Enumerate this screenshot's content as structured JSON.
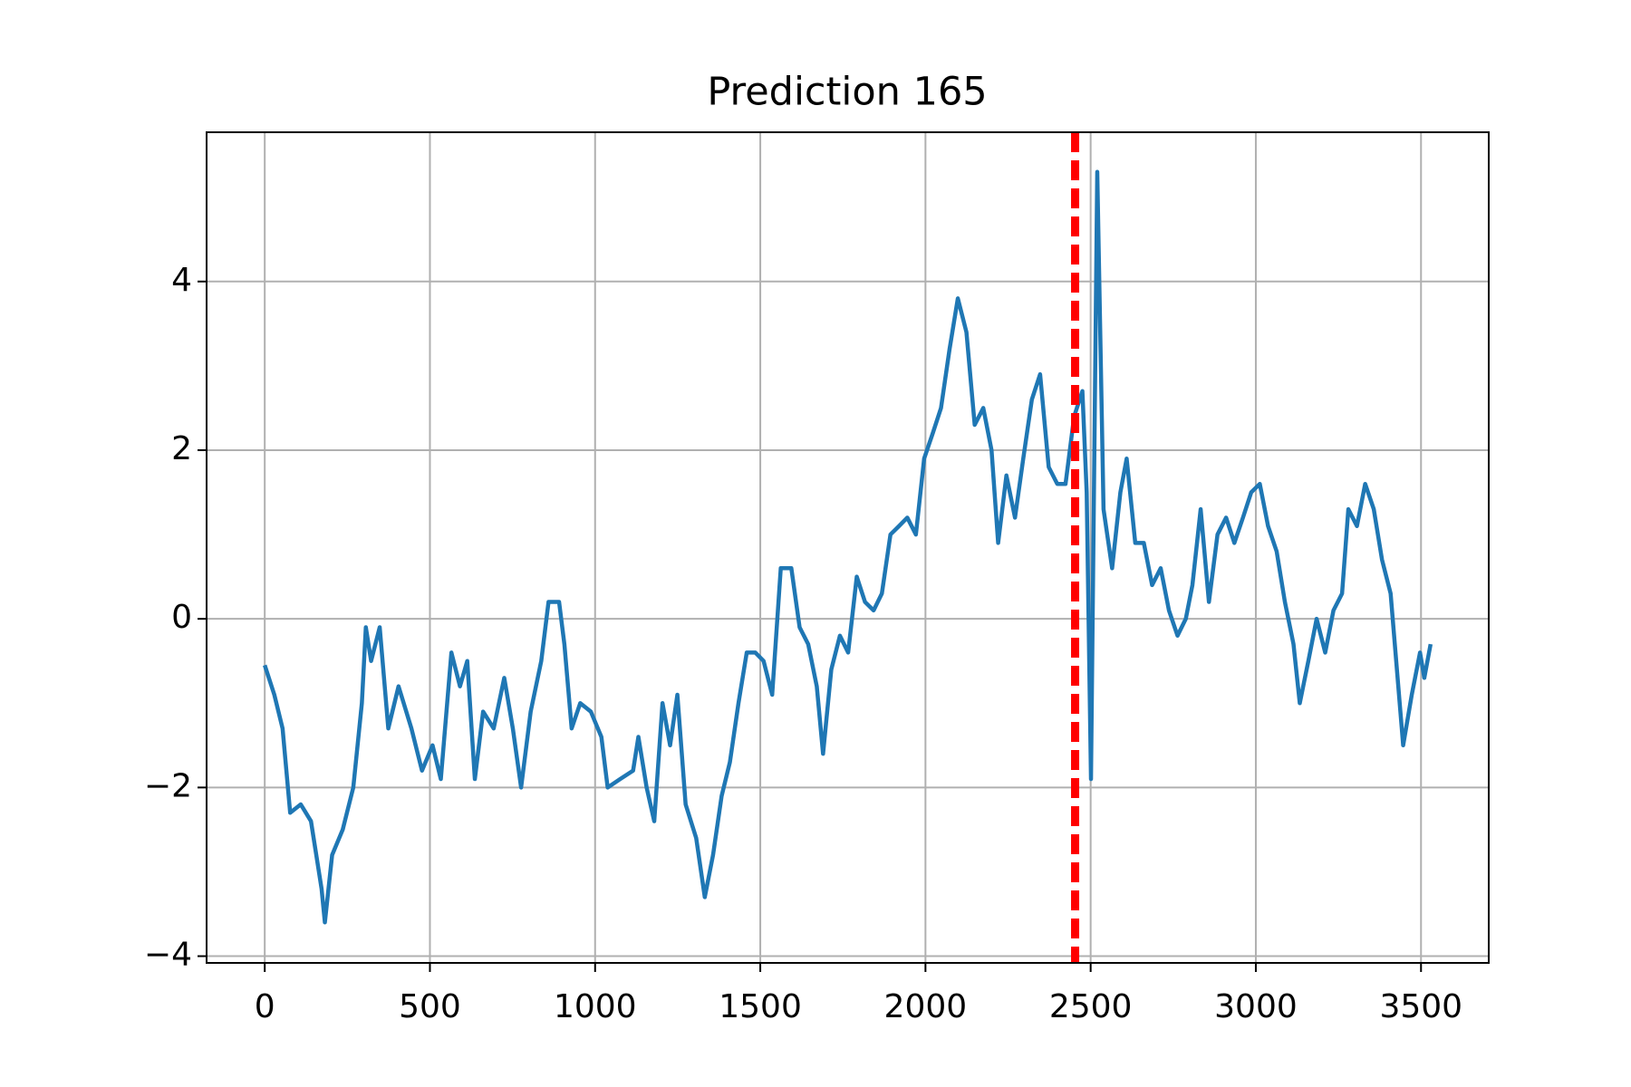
{
  "chart_data": {
    "type": "line",
    "title": "Prediction 165",
    "x": [
      0,
      29,
      54,
      77,
      109,
      140,
      172,
      182,
      204,
      236,
      268,
      294,
      306,
      322,
      348,
      374,
      405,
      444,
      476,
      508,
      533,
      565,
      591,
      613,
      636,
      661,
      693,
      725,
      751,
      776,
      805,
      837,
      859,
      891,
      907,
      929,
      955,
      987,
      1019,
      1038,
      1076,
      1115,
      1131,
      1156,
      1179,
      1204,
      1227,
      1249,
      1274,
      1306,
      1332,
      1357,
      1383,
      1408,
      1434,
      1459,
      1485,
      1510,
      1536,
      1562,
      1594,
      1619,
      1645,
      1671,
      1690,
      1715,
      1741,
      1766,
      1792,
      1817,
      1843,
      1868,
      1894,
      1920,
      1945,
      1971,
      1996,
      2022,
      2047,
      2073,
      2098,
      2124,
      2149,
      2175,
      2200,
      2220,
      2245,
      2271,
      2296,
      2322,
      2347,
      2373,
      2399,
      2424,
      2450,
      2475,
      2488,
      2501,
      2520,
      2539,
      2565,
      2590,
      2609,
      2635,
      2661,
      2686,
      2712,
      2737,
      2763,
      2788,
      2808,
      2833,
      2858,
      2884,
      2910,
      2935,
      2961,
      2986,
      3012,
      3037,
      3063,
      3088,
      3114,
      3133,
      3159,
      3184,
      3210,
      3235,
      3261,
      3280,
      3306,
      3331,
      3357,
      3382,
      3408,
      3427,
      3446,
      3472,
      3497,
      3510,
      3529
    ],
    "series": [
      {
        "color": "#1f77b4",
        "values": [
          -0.55,
          -0.9,
          -1.3,
          -2.3,
          -2.2,
          -2.4,
          -3.2,
          -3.6,
          -2.8,
          -2.5,
          -2.0,
          -1.0,
          -0.1,
          -0.5,
          -0.1,
          -1.3,
          -0.8,
          -1.3,
          -1.8,
          -1.5,
          -1.9,
          -0.4,
          -0.8,
          -0.5,
          -1.9,
          -1.1,
          -1.3,
          -0.7,
          -1.3,
          -2.0,
          -1.1,
          -0.5,
          0.2,
          0.2,
          -0.3,
          -1.3,
          -1.0,
          -1.1,
          -1.4,
          -2.0,
          -1.9,
          -1.8,
          -1.4,
          -2.0,
          -2.4,
          -1.0,
          -1.5,
          -0.9,
          -2.2,
          -2.6,
          -3.3,
          -2.8,
          -2.1,
          -1.7,
          -1.0,
          -0.4,
          -0.4,
          -0.5,
          -0.9,
          0.6,
          0.6,
          -0.1,
          -0.3,
          -0.8,
          -1.6,
          -0.6,
          -0.2,
          -0.4,
          0.5,
          0.2,
          0.1,
          0.3,
          1.0,
          1.1,
          1.2,
          1.0,
          1.9,
          2.2,
          2.5,
          3.2,
          3.8,
          3.4,
          2.3,
          2.5,
          2.0,
          0.9,
          1.7,
          1.2,
          1.9,
          2.6,
          2.9,
          1.8,
          1.6,
          1.6,
          2.4,
          2.7,
          1.5,
          -1.9,
          5.3,
          1.3,
          0.6,
          1.5,
          1.9,
          0.9,
          0.9,
          0.4,
          0.6,
          0.1,
          -0.2,
          0.0,
          0.4,
          1.3,
          0.2,
          1.0,
          1.2,
          0.9,
          1.2,
          1.5,
          1.6,
          1.1,
          0.8,
          0.2,
          -0.3,
          -1.0,
          -0.5,
          0.0,
          -0.4,
          0.1,
          0.3,
          1.3,
          1.1,
          1.6,
          1.3,
          0.7,
          0.3,
          -0.6,
          -1.5,
          -0.9,
          -0.4,
          -0.7,
          -0.3
        ]
      }
    ],
    "vlines": [
      {
        "x": 2453,
        "color": "#ff0000",
        "style": "dashed"
      }
    ],
    "xlim": [
      -176,
      3705
    ],
    "ylim": [
      -4.08,
      5.77
    ],
    "xticks": [
      0,
      500,
      1000,
      1500,
      2000,
      2500,
      3000,
      3500
    ],
    "yticks": [
      {
        "value": -4,
        "label": "−4"
      },
      {
        "value": -2,
        "label": "−2"
      },
      0,
      2,
      4
    ],
    "grid": true
  }
}
